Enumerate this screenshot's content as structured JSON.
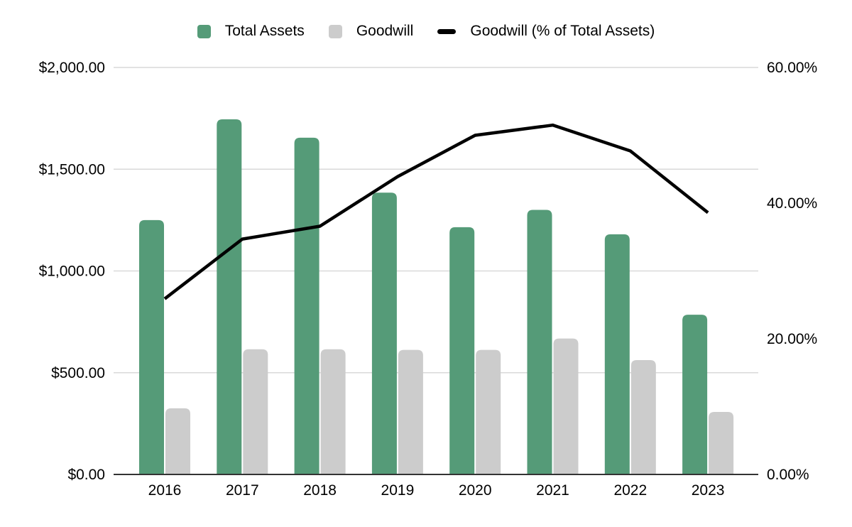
{
  "chart_data": {
    "type": "combo",
    "title": "",
    "categories": [
      "2016",
      "2017",
      "2018",
      "2019",
      "2020",
      "2021",
      "2022",
      "2023"
    ],
    "series": [
      {
        "name": "Total Assets",
        "type": "bar",
        "axis": "left",
        "color": "#559b78",
        "values": [
          1250,
          1745,
          1655,
          1385,
          1215,
          1300,
          1180,
          785
        ]
      },
      {
        "name": "Goodwill",
        "type": "bar",
        "axis": "left",
        "color": "#cccccc",
        "values": [
          325,
          615,
          615,
          612,
          612,
          668,
          562,
          307
        ]
      },
      {
        "name": "Goodwill (% of Total Assets)",
        "type": "line",
        "axis": "right",
        "color": "#000000",
        "values": [
          25.9,
          34.7,
          36.6,
          43.9,
          50.0,
          51.5,
          47.7,
          38.6
        ]
      }
    ],
    "left_axis": {
      "min": 0,
      "max": 2000,
      "ticks": [
        {
          "value": 0,
          "label": "$0.00"
        },
        {
          "value": 500,
          "label": "$500.00"
        },
        {
          "value": 1000,
          "label": "$1,000.00"
        },
        {
          "value": 1500,
          "label": "$1,500.00"
        },
        {
          "value": 2000,
          "label": "$2,000.00"
        }
      ]
    },
    "right_axis": {
      "min": 0,
      "max": 60,
      "ticks": [
        {
          "value": 0,
          "label": "0.00%"
        },
        {
          "value": 20,
          "label": "20.00%"
        },
        {
          "value": 40,
          "label": "40.00%"
        },
        {
          "value": 60,
          "label": "60.00%"
        }
      ]
    },
    "grid": true,
    "legend_position": "top"
  },
  "colors": {
    "background": "#ffffff",
    "gridline": "#d9d9d9",
    "axis_line": "#333333",
    "text": "#000000"
  }
}
